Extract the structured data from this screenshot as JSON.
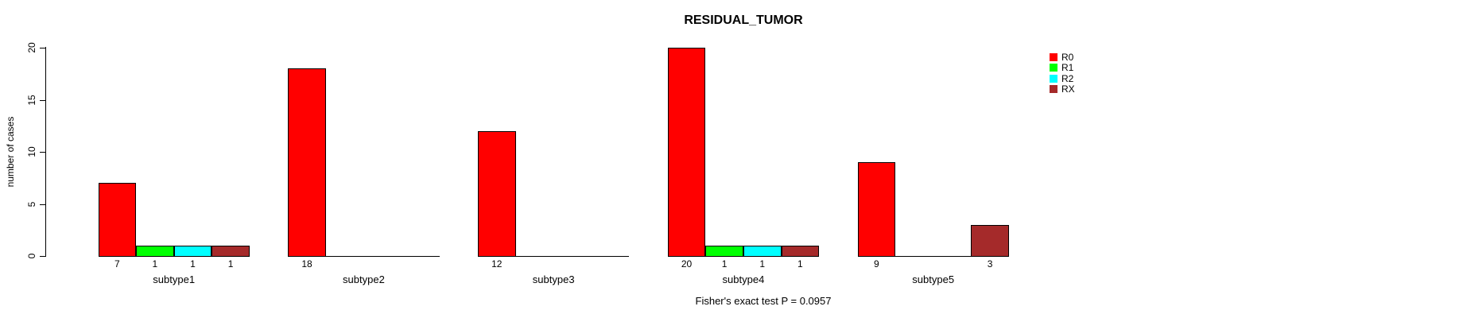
{
  "chart_data": {
    "type": "bar",
    "title": "RESIDUAL_TUMOR",
    "ylabel": "number of cases",
    "xlabel": "",
    "ylim": [
      0,
      20
    ],
    "yticks": [
      0,
      5,
      10,
      15,
      20
    ],
    "grid": false,
    "legend_position": "right",
    "categories": [
      "subtype1",
      "subtype2",
      "subtype3",
      "subtype4",
      "subtype5"
    ],
    "series": [
      {
        "name": "R0",
        "color": "#FF0000",
        "values": [
          7,
          18,
          12,
          20,
          9
        ]
      },
      {
        "name": "R1",
        "color": "#00FF00",
        "values": [
          1,
          0,
          0,
          1,
          0
        ]
      },
      {
        "name": "R2",
        "color": "#00FFFF",
        "values": [
          1,
          0,
          0,
          1,
          0
        ]
      },
      {
        "name": "RX",
        "color": "#A52A2A",
        "values": [
          1,
          0,
          0,
          1,
          3
        ]
      }
    ],
    "bar_value_labels": "shown only for non-zero bars",
    "footnote": "Fisher's exact test P = 0.0957"
  },
  "colors": {
    "background": "#FFFFFF",
    "axis": "#000000",
    "text": "#000000"
  }
}
